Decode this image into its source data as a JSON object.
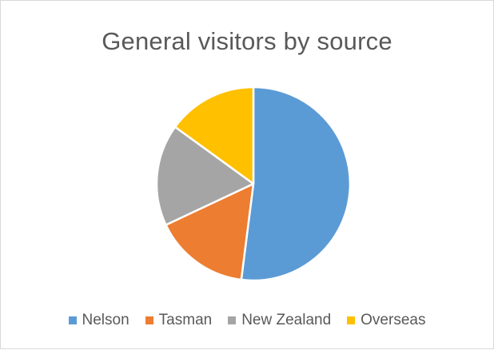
{
  "chart_data": {
    "type": "pie",
    "title": "General visitors by source",
    "categories": [
      "Nelson",
      "Tasman",
      "New Zealand",
      "Overseas"
    ],
    "values": [
      52,
      16,
      17,
      15
    ],
    "colors": [
      "#5b9bd5",
      "#ed7d31",
      "#a5a5a5",
      "#ffc000"
    ],
    "legend_position": "bottom"
  }
}
